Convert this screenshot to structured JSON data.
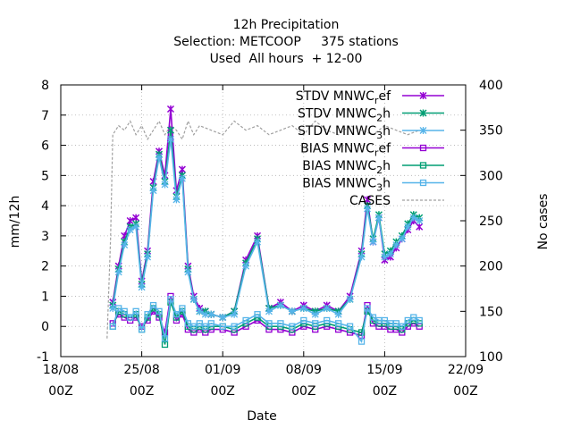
{
  "chart_data": {
    "type": "line",
    "title_lines": [
      "12h Precipitation",
      "Selection: METCOOP     375 stations",
      "Used  All hours  + 12-00"
    ],
    "xlabel": "Date",
    "ylabel": "mm/12h",
    "y2label": "No cases",
    "x_ticks": [
      {
        "day": 18,
        "top": "18/08",
        "bottom": "00Z"
      },
      {
        "day": 25,
        "top": "25/08",
        "bottom": "00Z"
      },
      {
        "day": 32,
        "top": "01/09",
        "bottom": "00Z"
      },
      {
        "day": 39,
        "top": "08/09",
        "bottom": "00Z"
      },
      {
        "day": 46,
        "top": "15/09",
        "bottom": "00Z"
      },
      {
        "day": 53,
        "top": "22/09",
        "bottom": "00Z"
      }
    ],
    "xlim_day": [
      18,
      53
    ],
    "ylim": [
      -1,
      8
    ],
    "y_ticks": [
      -1,
      0,
      1,
      2,
      3,
      4,
      5,
      6,
      7,
      8
    ],
    "y2lim": [
      100,
      400
    ],
    "y2_ticks": [
      100,
      150,
      200,
      250,
      300,
      350,
      400
    ],
    "grid": true,
    "legend_position": "top-right",
    "series": [
      {
        "name": "STDV MNWC_ref",
        "color": "#9400d3",
        "marker": "x-star",
        "axis": "y1",
        "x": [
          22.5,
          23.0,
          23.5,
          24.0,
          24.5,
          25.0,
          25.5,
          26.0,
          26.5,
          27.0,
          27.5,
          28.0,
          28.5,
          29.0,
          29.5,
          30.0,
          30.5,
          31.0,
          32.0,
          33.0,
          34.0,
          35.0,
          36.0,
          37.0,
          38.0,
          39.0,
          40.0,
          41.0,
          42.0,
          43.0,
          44.0,
          44.5,
          45.0,
          45.5,
          46.0,
          46.5,
          47.0,
          47.5,
          48.0,
          48.5,
          49.0
        ],
        "y": [
          0.8,
          2.0,
          3.0,
          3.5,
          3.6,
          1.5,
          2.5,
          4.8,
          5.8,
          5.0,
          7.2,
          4.5,
          5.2,
          2.0,
          1.0,
          0.6,
          0.5,
          0.4,
          0.3,
          0.5,
          2.2,
          3.0,
          0.6,
          0.8,
          0.5,
          0.7,
          0.5,
          0.7,
          0.5,
          1.0,
          2.5,
          4.2,
          2.8,
          3.6,
          2.2,
          2.3,
          2.6,
          2.9,
          3.2,
          3.5,
          3.3
        ]
      },
      {
        "name": "STDV MNWC_2h",
        "color": "#009e73",
        "marker": "x-star",
        "axis": "y1",
        "x": [
          22.5,
          23.0,
          23.5,
          24.0,
          24.5,
          25.0,
          25.5,
          26.0,
          26.5,
          27.0,
          27.5,
          28.0,
          28.5,
          29.0,
          29.5,
          30.0,
          30.5,
          31.0,
          32.0,
          33.0,
          34.0,
          35.0,
          36.0,
          37.0,
          38.0,
          39.0,
          40.0,
          41.0,
          42.0,
          43.0,
          44.0,
          44.5,
          45.0,
          45.5,
          46.0,
          46.5,
          47.0,
          47.5,
          48.0,
          48.5,
          49.0
        ],
        "y": [
          0.7,
          1.9,
          2.8,
          3.3,
          3.4,
          1.4,
          2.4,
          4.6,
          5.7,
          4.8,
          6.5,
          4.3,
          5.0,
          1.9,
          0.9,
          0.5,
          0.5,
          0.4,
          0.3,
          0.5,
          2.1,
          2.9,
          0.6,
          0.7,
          0.5,
          0.6,
          0.5,
          0.6,
          0.5,
          0.9,
          2.4,
          4.0,
          2.9,
          3.7,
          2.4,
          2.5,
          2.8,
          3.0,
          3.4,
          3.7,
          3.6
        ]
      },
      {
        "name": "STDV MNWC_3h",
        "color": "#56b4e9",
        "marker": "star",
        "axis": "y1",
        "x": [
          22.5,
          23.0,
          23.5,
          24.0,
          24.5,
          25.0,
          25.5,
          26.0,
          26.5,
          27.0,
          27.5,
          28.0,
          28.5,
          29.0,
          29.5,
          30.0,
          30.5,
          31.0,
          32.0,
          33.0,
          34.0,
          35.0,
          36.0,
          37.0,
          38.0,
          39.0,
          40.0,
          41.0,
          42.0,
          43.0,
          44.0,
          44.5,
          45.0,
          45.5,
          46.0,
          46.5,
          47.0,
          47.5,
          48.0,
          48.5,
          49.0
        ],
        "y": [
          0.6,
          1.8,
          2.7,
          3.2,
          3.3,
          1.3,
          2.3,
          4.5,
          5.6,
          4.7,
          6.2,
          4.2,
          4.9,
          1.8,
          0.9,
          0.5,
          0.4,
          0.4,
          0.3,
          0.4,
          2.0,
          2.8,
          0.5,
          0.7,
          0.5,
          0.6,
          0.4,
          0.6,
          0.4,
          0.9,
          2.3,
          3.9,
          2.8,
          3.6,
          2.3,
          2.4,
          2.7,
          2.9,
          3.3,
          3.6,
          3.5
        ]
      },
      {
        "name": "BIAS MNWC_ref",
        "color": "#9400d3",
        "marker": "square",
        "axis": "y1",
        "x": [
          22.5,
          23.0,
          23.5,
          24.0,
          24.5,
          25.0,
          25.5,
          26.0,
          26.5,
          27.0,
          27.5,
          28.0,
          28.5,
          29.0,
          29.5,
          30.0,
          30.5,
          31.0,
          32.0,
          33.0,
          34.0,
          35.0,
          36.0,
          37.0,
          38.0,
          39.0,
          40.0,
          41.0,
          42.0,
          43.0,
          44.0,
          44.5,
          45.0,
          45.5,
          46.0,
          46.5,
          47.0,
          47.5,
          48.0,
          48.5,
          49.0
        ],
        "y": [
          0.1,
          0.4,
          0.3,
          0.2,
          0.3,
          0.0,
          0.2,
          0.5,
          0.3,
          -0.2,
          1.0,
          0.2,
          0.4,
          -0.1,
          -0.2,
          -0.1,
          -0.2,
          -0.1,
          -0.1,
          -0.2,
          0.0,
          0.2,
          -0.1,
          -0.1,
          -0.2,
          0.0,
          -0.1,
          0.0,
          -0.1,
          -0.2,
          -0.3,
          0.7,
          0.1,
          0.0,
          0.0,
          -0.1,
          -0.1,
          -0.2,
          0.0,
          0.1,
          0.0
        ]
      },
      {
        "name": "BIAS MNWC_2h",
        "color": "#009e73",
        "marker": "square",
        "axis": "y1",
        "x": [
          22.5,
          23.0,
          23.5,
          24.0,
          24.5,
          25.0,
          25.5,
          26.0,
          26.5,
          27.0,
          27.5,
          28.0,
          28.5,
          29.0,
          29.5,
          30.0,
          30.5,
          31.0,
          32.0,
          33.0,
          34.0,
          35.0,
          36.0,
          37.0,
          38.0,
          39.0,
          40.0,
          41.0,
          42.0,
          43.0,
          44.0,
          44.5,
          45.0,
          45.5,
          46.0,
          46.5,
          47.0,
          47.5,
          48.0,
          48.5,
          49.0
        ],
        "y": [
          0.0,
          0.5,
          0.4,
          0.3,
          0.4,
          -0.1,
          0.3,
          0.6,
          0.4,
          -0.6,
          0.8,
          0.3,
          0.5,
          0.0,
          -0.1,
          0.0,
          -0.1,
          0.0,
          0.0,
          -0.1,
          0.1,
          0.3,
          0.0,
          0.0,
          -0.1,
          0.1,
          0.0,
          0.1,
          0.0,
          -0.1,
          -0.2,
          0.5,
          0.2,
          0.1,
          0.1,
          0.0,
          0.0,
          -0.1,
          0.1,
          0.2,
          0.1
        ]
      },
      {
        "name": "BIAS MNWC_3h",
        "color": "#56b4e9",
        "marker": "square",
        "axis": "y1",
        "x": [
          22.5,
          23.0,
          23.5,
          24.0,
          24.5,
          25.0,
          25.5,
          26.0,
          26.5,
          27.0,
          27.5,
          28.0,
          28.5,
          29.0,
          29.5,
          30.0,
          30.5,
          31.0,
          32.0,
          33.0,
          34.0,
          35.0,
          36.0,
          37.0,
          38.0,
          39.0,
          40.0,
          41.0,
          42.0,
          43.0,
          44.0,
          44.5,
          45.0,
          45.5,
          46.0,
          46.5,
          47.0,
          47.5,
          48.0,
          48.5,
          49.0
        ],
        "y": [
          0.0,
          0.6,
          0.5,
          0.3,
          0.5,
          -0.1,
          0.4,
          0.7,
          0.5,
          -0.4,
          0.9,
          0.4,
          0.6,
          0.1,
          0.0,
          0.1,
          0.0,
          0.1,
          0.0,
          0.0,
          0.2,
          0.4,
          0.1,
          0.1,
          0.0,
          0.2,
          0.1,
          0.2,
          0.1,
          0.0,
          -0.5,
          0.6,
          0.3,
          0.2,
          0.2,
          0.1,
          0.1,
          0.0,
          0.2,
          0.3,
          0.2
        ]
      },
      {
        "name": "CASES",
        "color": "#a0a0a0",
        "marker": "none",
        "dash": true,
        "axis": "y2",
        "x": [
          22.0,
          22.3,
          22.5,
          23.0,
          23.5,
          24.0,
          24.5,
          25.0,
          25.5,
          26.0,
          26.5,
          27.0,
          27.5,
          28.0,
          28.5,
          29.0,
          29.5,
          30.0,
          31.0,
          32.0,
          33.0,
          34.0,
          35.0,
          36.0,
          37.0,
          38.0,
          39.0,
          40.0,
          41.0,
          42.0,
          43.0,
          44.0,
          45.0,
          46.0,
          47.0,
          48.0,
          49.0
        ],
        "y": [
          120,
          230,
          345,
          355,
          350,
          360,
          345,
          355,
          340,
          350,
          360,
          345,
          355,
          350,
          340,
          360,
          345,
          355,
          350,
          345,
          360,
          350,
          355,
          345,
          350,
          355,
          345,
          360,
          350,
          345,
          355,
          350,
          345,
          355,
          350,
          345,
          350
        ]
      }
    ]
  }
}
